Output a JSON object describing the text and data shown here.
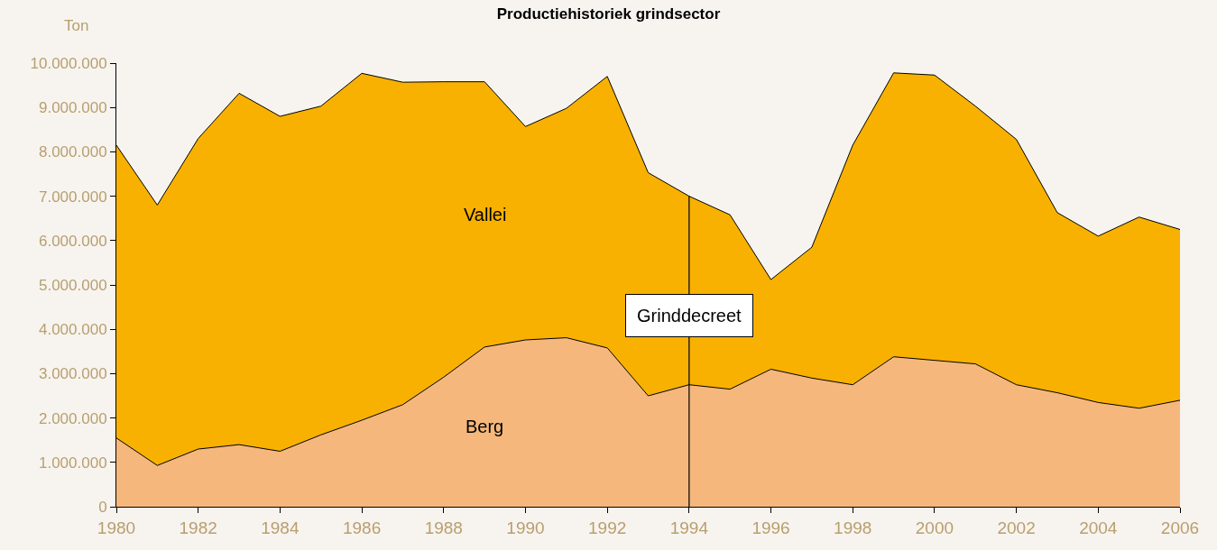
{
  "chart_data": {
    "type": "area",
    "title": "Productiehistoriek grindsector",
    "ylabel": "Ton",
    "stacked": true,
    "legend": false,
    "grid": false,
    "x": [
      1980,
      1981,
      1982,
      1983,
      1984,
      1985,
      1986,
      1987,
      1988,
      1989,
      1990,
      1991,
      1992,
      1993,
      1994,
      1995,
      1996,
      1997,
      1998,
      1999,
      2000,
      2001,
      2002,
      2003,
      2004,
      2005,
      2006
    ],
    "series": [
      {
        "name": "Berg",
        "color": "#f5b77c",
        "values": [
          1550000,
          930000,
          1300000,
          1400000,
          1250000,
          1620000,
          1950000,
          2300000,
          2920000,
          3600000,
          3760000,
          3810000,
          3580000,
          2500000,
          2750000,
          2650000,
          3100000,
          2900000,
          2750000,
          3380000,
          3300000,
          3220000,
          2750000,
          2570000,
          2350000,
          2220000,
          2400000
        ]
      },
      {
        "name": "Vallei",
        "color": "#f8b100",
        "values": [
          6600000,
          5870000,
          7000000,
          7920000,
          7550000,
          7410000,
          7820000,
          7270000,
          6660000,
          5980000,
          4810000,
          5170000,
          6120000,
          5030000,
          4250000,
          3930000,
          2020000,
          2950000,
          5400000,
          6400000,
          6430000,
          5810000,
          5530000,
          4060000,
          3750000,
          4310000,
          3850000
        ]
      }
    ],
    "xlim": [
      1980,
      2006
    ],
    "xticks": [
      1980,
      1982,
      1984,
      1986,
      1988,
      1990,
      1992,
      1994,
      1996,
      1998,
      2000,
      2002,
      2004,
      2006
    ],
    "ylim": [
      0,
      10000000
    ],
    "yticks": [
      {
        "value": 0,
        "label": "0"
      },
      {
        "value": 1000000,
        "label": "1.000.000"
      },
      {
        "value": 2000000,
        "label": "2.000.000"
      },
      {
        "value": 3000000,
        "label": "3.000.000"
      },
      {
        "value": 4000000,
        "label": "4.000.000"
      },
      {
        "value": 5000000,
        "label": "5.000.000"
      },
      {
        "value": 6000000,
        "label": "6.000.000"
      },
      {
        "value": 7000000,
        "label": "7.000.000"
      },
      {
        "value": 8000000,
        "label": "8.000.000"
      },
      {
        "value": 9000000,
        "label": "9.000.000"
      },
      {
        "value": 10000000,
        "label": "10.000.000"
      }
    ],
    "ref_lines": [
      {
        "axis": "x",
        "value": 1994,
        "label": "Grinddecreet",
        "color": "#000000"
      }
    ]
  }
}
